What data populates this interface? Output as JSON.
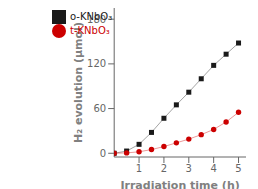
{
  "chart_data": {
    "type": "line",
    "x": [
      0,
      0.5,
      1.0,
      1.5,
      2.0,
      2.5,
      3.0,
      3.5,
      4.0,
      4.5,
      5.0
    ],
    "series": [
      {
        "name": "o-KNbO₃",
        "color": "#1a1a1a",
        "marker": "square",
        "values": [
          0,
          3,
          12,
          28,
          47,
          65,
          82,
          100,
          118,
          133,
          148
        ]
      },
      {
        "name": "t-KNbO₃",
        "color": "#cc0000",
        "marker": "circle",
        "values": [
          0,
          0.5,
          2,
          5,
          9,
          14,
          19,
          25,
          32,
          42,
          55
        ]
      }
    ],
    "xlabel": "Irradiation time (h)",
    "ylabel": "H₂ evolution (μmol)",
    "xlim": [
      0,
      5.3
    ],
    "ylim": [
      -5,
      195
    ],
    "xticks": [
      1,
      2,
      3,
      4,
      5
    ],
    "yticks": [
      0,
      60,
      120,
      180
    ],
    "legend": "upper left",
    "grid": false
  }
}
